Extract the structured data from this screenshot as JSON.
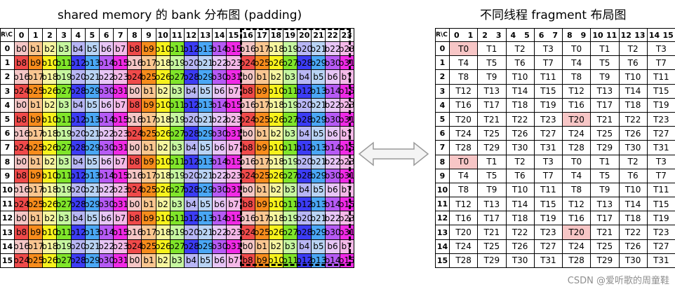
{
  "left_title": "shared memory 的 bank 分布图 (padding)",
  "right_title": "不同线程 fragment 布局图",
  "watermark": "CSDN @爱听歌的周童鞋",
  "corner_label": "R\\C",
  "bank_colors": [
    "#f5c6c6",
    "#fac690",
    "#f7f6a0",
    "#c6f7a0",
    "#b8b6f5",
    "#b9d4f5",
    "#e8c6f7",
    "#f5b9e8",
    "#ef4a4a",
    "#f78c1c",
    "#f7f21c",
    "#80e52a",
    "#3c3cf5",
    "#4aa7f5",
    "#b65af5",
    "#f02ae5"
  ],
  "highlight_color": "#f7c6c6",
  "right_highlights": [
    [
      0,
      0
    ],
    [
      5,
      4
    ],
    [
      8,
      0
    ],
    [
      13,
      4
    ]
  ]
}
